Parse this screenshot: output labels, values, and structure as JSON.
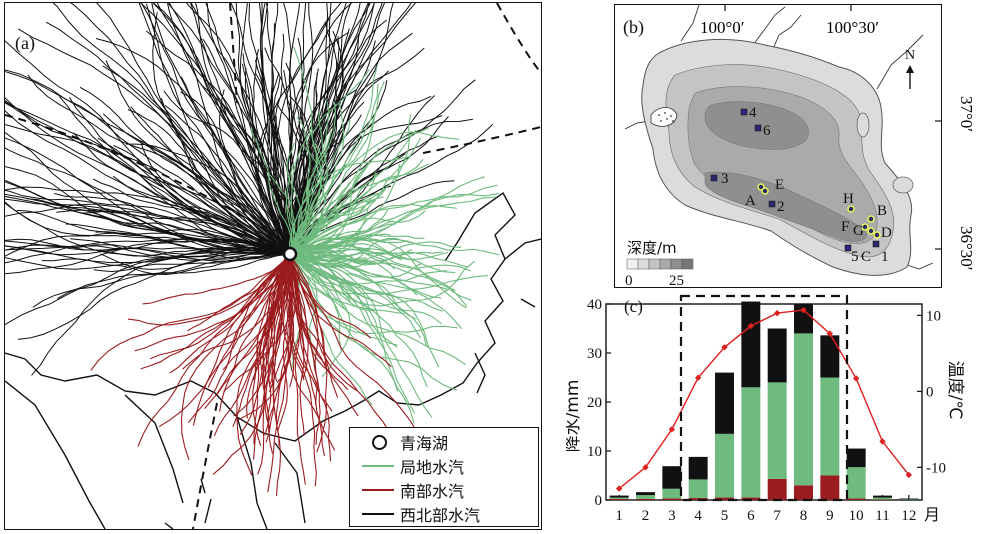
{
  "panel_a": {
    "label": "(a)",
    "legend": [
      {
        "symbol": "circle",
        "label": "青海湖",
        "color": "#111111"
      },
      {
        "symbol": "line",
        "label": "局地水汽",
        "color": "#6fba7e"
      },
      {
        "symbol": "line",
        "label": "南部水汽",
        "color": "#9b1c1f"
      },
      {
        "symbol": "line",
        "label": "西北部水汽",
        "color": "#111111"
      }
    ]
  },
  "panel_b": {
    "label": "(b)",
    "lon_labels": [
      "100°0′",
      "100°30′"
    ],
    "lat_labels": [
      "37°0′",
      "36°30′"
    ],
    "north": "N",
    "depth_title": "深度/m",
    "depth_ticks": [
      "0",
      "25"
    ],
    "sites": [
      "4",
      "6",
      "3",
      "2",
      "1",
      "5",
      "C"
    ],
    "points": [
      "A",
      "E",
      "H",
      "B",
      "F",
      "G",
      "D"
    ]
  },
  "chart_data": {
    "type": "bar",
    "label": "(c)",
    "categories": [
      "1",
      "2",
      "3",
      "4",
      "5",
      "6",
      "7",
      "8",
      "9",
      "10",
      "11",
      "12"
    ],
    "x_unit": "月",
    "stacked": true,
    "series": [
      {
        "name": "南部水汽",
        "color": "#9b1c1f",
        "values": [
          0.2,
          0.2,
          0.3,
          0.4,
          0.5,
          0.5,
          4.3,
          3.0,
          5.0,
          0.3,
          0.1,
          0.0
        ]
      },
      {
        "name": "局地水汽",
        "color": "#6fba7e",
        "values": [
          0.3,
          0.8,
          2.0,
          3.8,
          13.0,
          22.5,
          19.7,
          31.0,
          20.0,
          6.4,
          0.4,
          0.1
        ]
      },
      {
        "name": "西北部水汽",
        "color": "#111111",
        "values": [
          0.4,
          0.6,
          4.6,
          4.6,
          12.5,
          17.5,
          11.0,
          6.0,
          8.6,
          3.8,
          0.4,
          0.2
        ]
      }
    ],
    "temperature": {
      "color": "#e02020",
      "values": [
        -12.8,
        -10.0,
        -5.0,
        1.8,
        5.8,
        8.6,
        10.3,
        10.7,
        7.6,
        1.7,
        -6.6,
        -11.0
      ]
    },
    "ylabel": "降水/mm",
    "ylim": [
      0,
      40
    ],
    "yticks": [
      0,
      10,
      20,
      30,
      40
    ],
    "y2label": "温度/℃",
    "y2lim": [
      -14.3,
      11.5
    ],
    "y2ticks": [
      -10,
      0,
      10
    ],
    "highlight": [
      "4",
      "9"
    ],
    "grid": false
  }
}
